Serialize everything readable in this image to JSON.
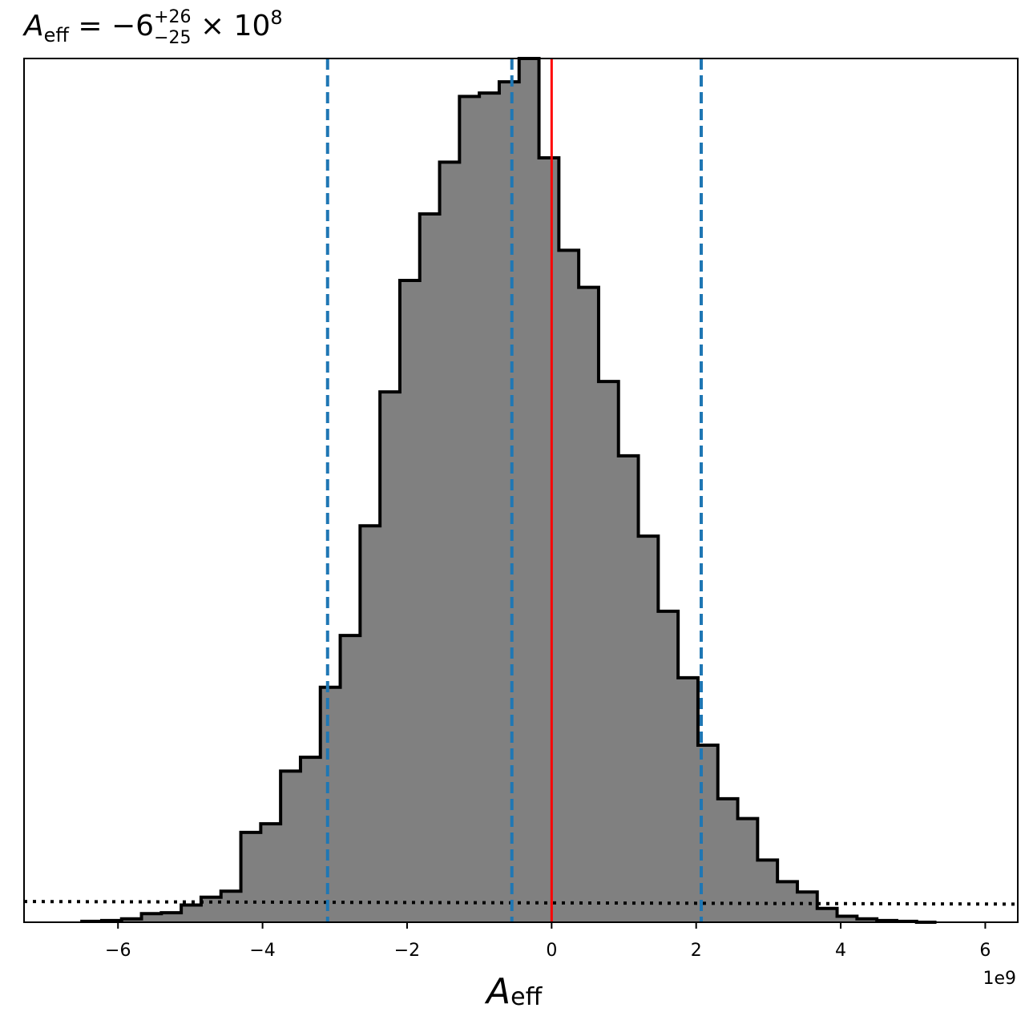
{
  "chart_data": {
    "type": "bar",
    "title": {
      "symbol": "A",
      "subscript": "eff",
      "value": " = −6",
      "superscript": "+26",
      "subscript2": "−25",
      "suffix": " × 10",
      "exponent": "8"
    },
    "xlabel": {
      "symbol": "A",
      "subscript": "eff"
    },
    "offset_label": "1e9",
    "xlim": [
      -7.3,
      6.45
    ],
    "ylim": [
      0,
      1.0
    ],
    "x_ticks": [
      -6,
      -4,
      -2,
      0,
      2,
      4,
      6
    ],
    "x_tick_labels": [
      "−6",
      "−4",
      "−2",
      "0",
      "2",
      "4",
      "6"
    ],
    "y_ticks_shown": false,
    "grid": false,
    "histogram": {
      "fill_color": "#808080",
      "edge_color": "#000000",
      "bin_edges": [
        -6.5,
        -6.225,
        -5.95,
        -5.675,
        -5.4,
        -5.125,
        -4.85,
        -4.575,
        -4.3,
        -4.025,
        -3.75,
        -3.475,
        -3.2,
        -2.925,
        -2.65,
        -2.375,
        -2.1,
        -1.825,
        -1.55,
        -1.275,
        -1.0,
        -0.725,
        -0.45,
        -0.175,
        0.1,
        0.375,
        0.65,
        0.925,
        1.2,
        1.475,
        1.75,
        2.025,
        2.3,
        2.575,
        2.85,
        3.125,
        3.4,
        3.675,
        3.95,
        4.225,
        4.5,
        4.775,
        5.05,
        5.325
      ],
      "heights": [
        0.001,
        0.002,
        0.004,
        0.01,
        0.011,
        0.02,
        0.029,
        0.036,
        0.104,
        0.114,
        0.175,
        0.191,
        0.272,
        0.332,
        0.459,
        0.614,
        0.743,
        0.82,
        0.88,
        0.956,
        0.96,
        0.973,
        1.0,
        0.885,
        0.778,
        0.735,
        0.626,
        0.54,
        0.447,
        0.36,
        0.283,
        0.205,
        0.143,
        0.12,
        0.072,
        0.047,
        0.035,
        0.016,
        0.007,
        0.004,
        0.002,
        0.001,
        0.0
      ]
    },
    "vlines": [
      {
        "x": -3.1,
        "style": "dashed",
        "color": "#1f77b4"
      },
      {
        "x": -0.55,
        "style": "dashed",
        "color": "#1f77b4"
      },
      {
        "x": 2.07,
        "style": "dashed",
        "color": "#1f77b4"
      },
      {
        "x": 0.0,
        "style": "solid",
        "color": "#ff0000"
      }
    ],
    "dotted_line": {
      "color": "#000000",
      "y_start": 0.024,
      "y_end": 0.021
    }
  }
}
